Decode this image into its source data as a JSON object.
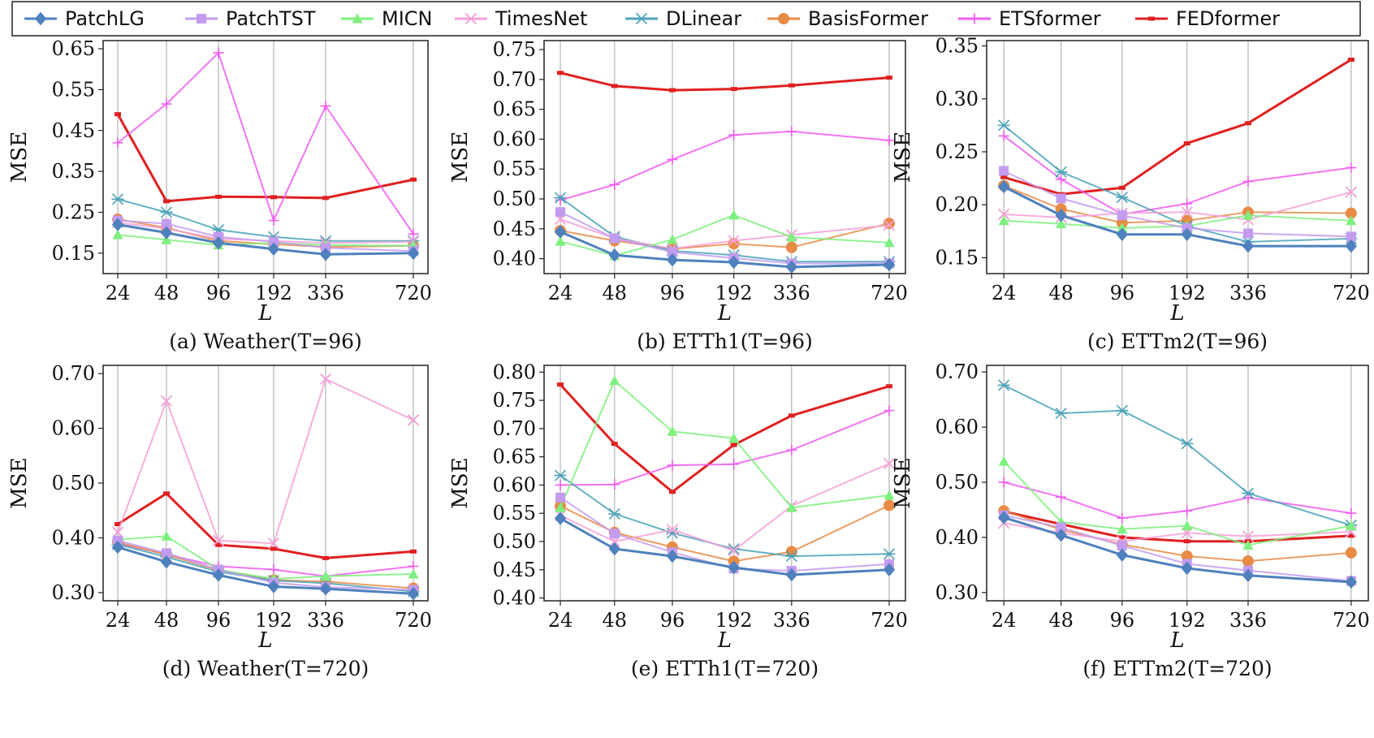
{
  "legend": [
    {
      "name": "PatchLG",
      "color": "#4e81bd",
      "marker": "diamond"
    },
    {
      "name": "PatchTST",
      "color": "#c39bf0",
      "marker": "square"
    },
    {
      "name": "MICN",
      "color": "#7ef07e",
      "marker": "triangle"
    },
    {
      "name": "TimesNet",
      "color": "#f5a0d8",
      "marker": "x"
    },
    {
      "name": "DLinear",
      "color": "#4aa3b8",
      "marker": "asterisk"
    },
    {
      "name": "BasisFormer",
      "color": "#e88b45",
      "marker": "circle"
    },
    {
      "name": "ETSformer",
      "color": "#f05cf0",
      "marker": "plus"
    },
    {
      "name": "FEDformer",
      "color": "#e02020",
      "marker": "dash"
    }
  ],
  "chart_data": [
    {
      "type": "line",
      "caption": "(a) Weather(T=96)",
      "xlabel": "L",
      "ylabel": "MSE",
      "categories": [
        "24",
        "48",
        "96",
        "192",
        "336",
        "720"
      ],
      "ylim": [
        0.1,
        0.67
      ],
      "yticks": [
        0.15,
        0.25,
        0.35,
        0.45,
        0.55,
        0.65
      ],
      "series": [
        {
          "name": "PatchLG",
          "values": [
            0.22,
            0.2,
            0.175,
            0.16,
            0.147,
            0.15
          ]
        },
        {
          "name": "PatchTST",
          "values": [
            0.23,
            0.222,
            0.19,
            0.178,
            0.163,
            0.155
          ]
        },
        {
          "name": "MICN",
          "values": [
            0.195,
            0.183,
            0.17,
            0.175,
            0.17,
            0.168
          ]
        },
        {
          "name": "TimesNet",
          "values": [
            0.225,
            0.21,
            0.185,
            0.18,
            0.175,
            0.178
          ]
        },
        {
          "name": "DLinear",
          "values": [
            0.282,
            0.25,
            0.207,
            0.19,
            0.18,
            0.18
          ]
        },
        {
          "name": "BasisFormer",
          "values": [
            0.233,
            0.212,
            0.18,
            0.172,
            0.165,
            0.168
          ]
        },
        {
          "name": "ETSformer",
          "values": [
            0.42,
            0.515,
            0.64,
            0.23,
            0.51,
            0.197
          ]
        },
        {
          "name": "FEDformer",
          "values": [
            0.49,
            0.277,
            0.288,
            0.287,
            0.285,
            0.33
          ]
        }
      ]
    },
    {
      "type": "line",
      "caption": "(b) ETTh1(T=96)",
      "xlabel": "L",
      "ylabel": "MSE",
      "categories": [
        "24",
        "48",
        "96",
        "192",
        "336",
        "720"
      ],
      "ylim": [
        0.375,
        0.765
      ],
      "yticks": [
        0.4,
        0.45,
        0.5,
        0.55,
        0.6,
        0.65,
        0.7,
        0.75
      ],
      "series": [
        {
          "name": "PatchLG",
          "values": [
            0.445,
            0.406,
            0.398,
            0.394,
            0.386,
            0.39
          ]
        },
        {
          "name": "PatchTST",
          "values": [
            0.478,
            0.434,
            0.411,
            0.401,
            0.392,
            0.392
          ]
        },
        {
          "name": "MICN",
          "values": [
            0.429,
            0.405,
            0.432,
            0.473,
            0.436,
            0.427
          ]
        },
        {
          "name": "TimesNet",
          "values": [
            0.466,
            0.434,
            0.417,
            0.43,
            0.44,
            0.456
          ]
        },
        {
          "name": "DLinear",
          "values": [
            0.502,
            0.437,
            0.413,
            0.406,
            0.395,
            0.395
          ]
        },
        {
          "name": "BasisFormer",
          "values": [
            0.447,
            0.43,
            0.416,
            0.425,
            0.419,
            0.459
          ]
        },
        {
          "name": "ETSformer",
          "values": [
            0.498,
            0.524,
            0.566,
            0.607,
            0.613,
            0.598
          ]
        },
        {
          "name": "FEDformer",
          "values": [
            0.711,
            0.689,
            0.682,
            0.684,
            0.69,
            0.703
          ]
        }
      ]
    },
    {
      "type": "line",
      "caption": "(c) ETTm2(T=96)",
      "xlabel": "L",
      "ylabel": "MSE",
      "categories": [
        "24",
        "48",
        "96",
        "192",
        "336",
        "720"
      ],
      "ylim": [
        0.135,
        0.355
      ],
      "yticks": [
        0.15,
        0.2,
        0.25,
        0.3,
        0.35
      ],
      "series": [
        {
          "name": "PatchLG",
          "values": [
            0.217,
            0.19,
            0.172,
            0.172,
            0.161,
            0.161
          ]
        },
        {
          "name": "PatchTST",
          "values": [
            0.232,
            0.206,
            0.19,
            0.178,
            0.173,
            0.17
          ]
        },
        {
          "name": "MICN",
          "values": [
            0.185,
            0.182,
            0.178,
            0.18,
            0.19,
            0.185
          ]
        },
        {
          "name": "TimesNet",
          "values": [
            0.191,
            0.188,
            0.192,
            0.193,
            0.186,
            0.212
          ]
        },
        {
          "name": "DLinear",
          "values": [
            0.275,
            0.231,
            0.207,
            0.18,
            0.165,
            0.168
          ]
        },
        {
          "name": "BasisFormer",
          "values": [
            0.218,
            0.196,
            0.183,
            0.185,
            0.193,
            0.192
          ]
        },
        {
          "name": "ETSformer",
          "values": [
            0.265,
            0.224,
            0.191,
            0.201,
            0.222,
            0.235
          ]
        },
        {
          "name": "FEDformer",
          "values": [
            0.226,
            0.21,
            0.216,
            0.258,
            0.277,
            0.337
          ]
        }
      ]
    },
    {
      "type": "line",
      "caption": "(d) Weather(T=720)",
      "xlabel": "L",
      "ylabel": "MSE",
      "categories": [
        "24",
        "48",
        "96",
        "192",
        "336",
        "720"
      ],
      "ylim": [
        0.285,
        0.715
      ],
      "yticks": [
        0.3,
        0.4,
        0.5,
        0.6,
        0.7
      ],
      "series": [
        {
          "name": "PatchLG",
          "values": [
            0.383,
            0.356,
            0.332,
            0.311,
            0.307,
            0.298
          ]
        },
        {
          "name": "PatchTST",
          "values": [
            0.395,
            0.372,
            0.342,
            0.318,
            0.31,
            0.305
          ]
        },
        {
          "name": "MICN",
          "values": [
            0.397,
            0.403,
            0.342,
            0.325,
            0.33,
            0.334
          ]
        },
        {
          "name": "TimesNet",
          "values": [
            0.41,
            0.65,
            0.395,
            0.39,
            0.69,
            0.615
          ]
        },
        {
          "name": "DLinear",
          "values": [
            0.388,
            0.365,
            0.338,
            0.322,
            0.317,
            0.302
          ]
        },
        {
          "name": "BasisFormer",
          "values": [
            0.392,
            0.369,
            0.341,
            0.323,
            0.32,
            0.308
          ]
        },
        {
          "name": "ETSformer",
          "values": [
            0.39,
            0.37,
            0.348,
            0.342,
            0.33,
            0.348
          ]
        },
        {
          "name": "FEDformer",
          "values": [
            0.425,
            0.481,
            0.387,
            0.38,
            0.363,
            0.375
          ]
        }
      ]
    },
    {
      "type": "line",
      "caption": "(e) ETTh1(T=720)",
      "xlabel": "L",
      "ylabel": "MSE",
      "categories": [
        "24",
        "48",
        "96",
        "192",
        "336",
        "720"
      ],
      "ylim": [
        0.395,
        0.812
      ],
      "yticks": [
        0.4,
        0.45,
        0.5,
        0.55,
        0.6,
        0.65,
        0.7,
        0.75,
        0.8
      ],
      "series": [
        {
          "name": "PatchLG",
          "values": [
            0.541,
            0.487,
            0.474,
            0.454,
            0.441,
            0.45
          ]
        },
        {
          "name": "PatchTST",
          "values": [
            0.578,
            0.514,
            0.481,
            0.452,
            0.448,
            0.46
          ]
        },
        {
          "name": "MICN",
          "values": [
            0.56,
            0.785,
            0.695,
            0.683,
            0.56,
            0.582
          ]
        },
        {
          "name": "TimesNet",
          "values": [
            0.546,
            0.5,
            0.521,
            0.484,
            0.563,
            0.638
          ]
        },
        {
          "name": "DLinear",
          "values": [
            0.617,
            0.549,
            0.515,
            0.487,
            0.474,
            0.478
          ]
        },
        {
          "name": "BasisFormer",
          "values": [
            0.563,
            0.516,
            0.49,
            0.465,
            0.482,
            0.564
          ]
        },
        {
          "name": "ETSformer",
          "values": [
            0.6,
            0.601,
            0.635,
            0.637,
            0.662,
            0.732
          ]
        },
        {
          "name": "FEDformer",
          "values": [
            0.778,
            0.673,
            0.588,
            0.671,
            0.723,
            0.775
          ]
        }
      ]
    },
    {
      "type": "line",
      "caption": "(f) ETTm2(T=720)",
      "xlabel": "L",
      "ylabel": "MSE",
      "categories": [
        "24",
        "48",
        "96",
        "192",
        "336",
        "720"
      ],
      "ylim": [
        0.285,
        0.712
      ],
      "yticks": [
        0.3,
        0.4,
        0.5,
        0.6,
        0.7
      ],
      "series": [
        {
          "name": "PatchLG",
          "values": [
            0.436,
            0.404,
            0.368,
            0.344,
            0.331,
            0.319
          ]
        },
        {
          "name": "PatchTST",
          "values": [
            0.44,
            0.418,
            0.385,
            0.352,
            0.34,
            0.321
          ]
        },
        {
          "name": "MICN",
          "values": [
            0.538,
            0.428,
            0.415,
            0.421,
            0.386,
            0.421
          ]
        },
        {
          "name": "TimesNet",
          "values": [
            0.426,
            0.408,
            0.393,
            0.408,
            0.402,
            0.41
          ]
        },
        {
          "name": "DLinear",
          "values": [
            0.676,
            0.625,
            0.63,
            0.57,
            0.48,
            0.422
          ]
        },
        {
          "name": "BasisFormer",
          "values": [
            0.448,
            0.414,
            0.387,
            0.366,
            0.357,
            0.372
          ]
        },
        {
          "name": "ETSformer",
          "values": [
            0.5,
            0.473,
            0.435,
            0.448,
            0.472,
            0.444
          ]
        },
        {
          "name": "FEDformer",
          "values": [
            0.447,
            0.424,
            0.4,
            0.393,
            0.393,
            0.403
          ]
        }
      ]
    }
  ]
}
